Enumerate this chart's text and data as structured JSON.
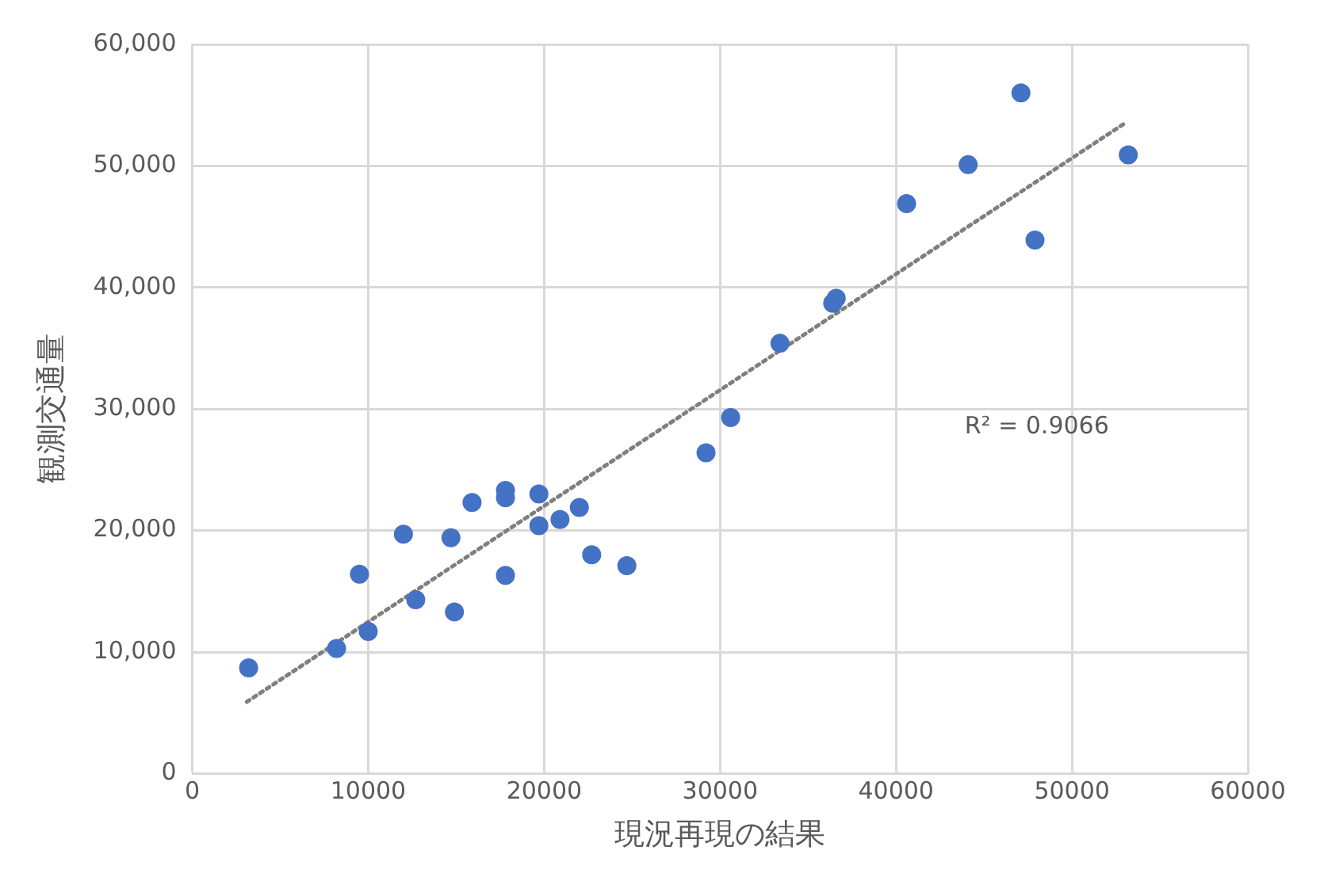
{
  "chart_data": {
    "type": "scatter",
    "xlabel": "現況再現の結果",
    "ylabel": "観測交通量",
    "xlim": [
      0,
      60000
    ],
    "xticks": [
      0,
      10000,
      20000,
      30000,
      40000,
      50000,
      60000
    ],
    "ylim": [
      0,
      60000
    ],
    "yticks": [
      0,
      {
        "value": 10000,
        "label": "10,000"
      },
      {
        "value": 20000,
        "label": "20,000"
      },
      {
        "value": 30000,
        "label": "30,000"
      },
      {
        "value": 40000,
        "label": "40,000"
      },
      {
        "value": 50000,
        "label": "50,000"
      },
      {
        "value": 60000,
        "label": "60,000"
      }
    ],
    "grid": true,
    "legend": false,
    "marker": "circle",
    "series": [
      {
        "type": "scatter",
        "color": "#4472c4",
        "x": [
          3200,
          8200,
          10000,
          9500,
          12000,
          12700,
          14700,
          14900,
          15900,
          17800,
          17800,
          17800,
          19700,
          19700,
          20900,
          22000,
          22700,
          24700,
          29200,
          30600,
          33400,
          36400,
          36600,
          40600,
          44100,
          47100,
          47900,
          53200
        ],
        "values": [
          8700,
          10300,
          11700,
          16400,
          19700,
          14300,
          19400,
          13300,
          22300,
          23300,
          22700,
          16300,
          23000,
          20400,
          20900,
          21900,
          18000,
          17100,
          26400,
          29300,
          35400,
          38700,
          39100,
          46900,
          50100,
          56000,
          43900,
          50900
        ]
      },
      {
        "type": "line",
        "color": "#7f7f7f",
        "line_style": "dotted",
        "marker": "none",
        "x": [
          3100,
          53100
        ],
        "values": [
          5900,
          53600
        ]
      }
    ],
    "annotations": [
      "R² = 0.9066"
    ]
  }
}
